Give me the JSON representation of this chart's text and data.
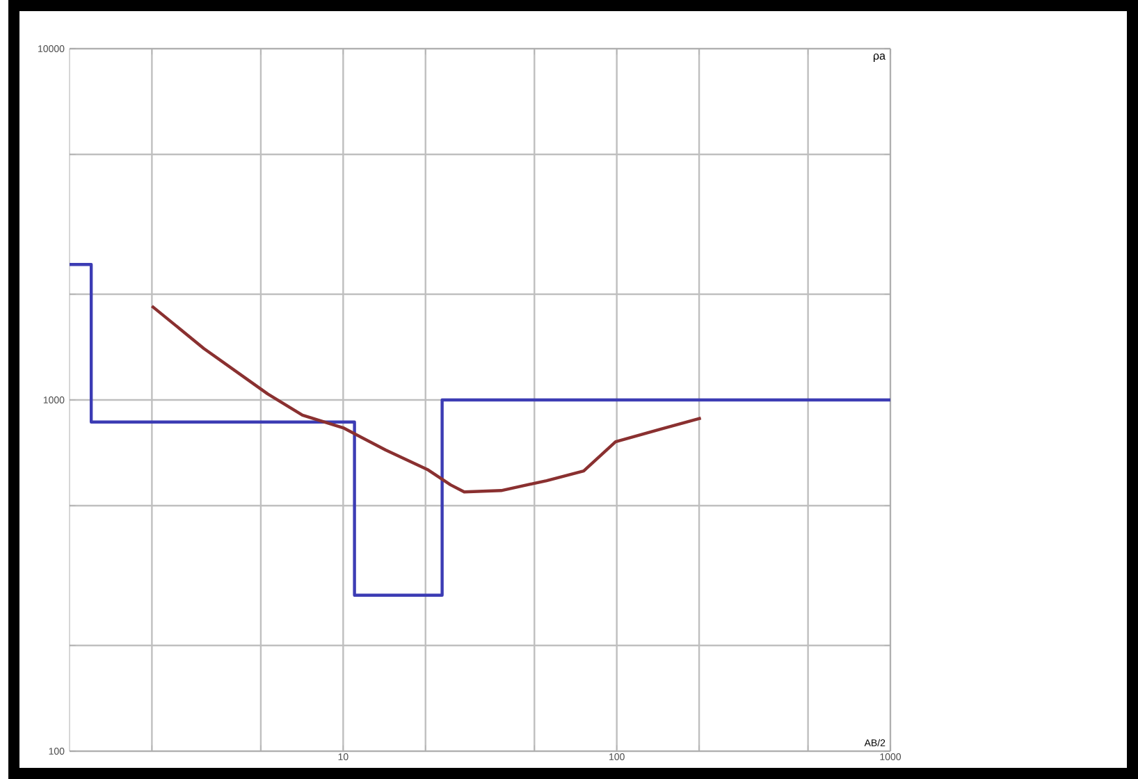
{
  "chart_data": {
    "type": "line",
    "xlabel": "AB/2",
    "ylabel": "ρa",
    "log": "xy",
    "grid": true,
    "line_style": "solid",
    "marker": "none",
    "xlim": [
      1,
      1000
    ],
    "ylim": [
      100,
      10000
    ],
    "xticks": [
      {
        "value": 2,
        "label": null
      },
      {
        "value": 5,
        "label": null
      },
      10,
      {
        "value": 20,
        "label": null
      },
      {
        "value": 50,
        "label": null
      },
      100,
      {
        "value": 200,
        "label": null
      },
      {
        "value": 500,
        "label": null
      },
      1000
    ],
    "yticks": [
      100,
      {
        "value": 200,
        "label": null
      },
      {
        "value": 500,
        "label": null
      },
      1000,
      {
        "value": 2000,
        "label": null
      },
      {
        "value": 5000,
        "label": null
      },
      10000
    ],
    "series": [
      {
        "type": "step",
        "color": "#3c3cb4",
        "x": [
          1,
          1.2,
          1.2,
          11,
          11,
          23,
          23,
          1000
        ],
        "values": [
          2430,
          2430,
          865,
          865,
          278,
          278,
          1000,
          1000
        ]
      },
      {
        "color": "#8a3030",
        "x": [
          2,
          3.1,
          5.3,
          7.1,
          10,
          14.3,
          20.3,
          24.7,
          27.7,
          37.8,
          55.4,
          75.7,
          99,
          145,
          203
        ],
        "values": [
          1850,
          1400,
          1040,
          905,
          833,
          720,
          634,
          573,
          547,
          552,
          589,
          628,
          760,
          826,
          888
        ]
      }
    ]
  }
}
